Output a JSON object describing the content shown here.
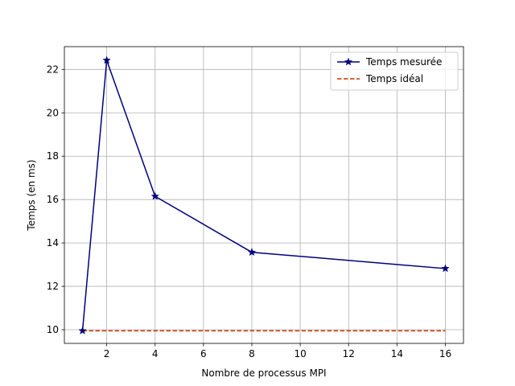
{
  "chart_data": {
    "type": "line",
    "title": "",
    "xlabel": "Nombre de processus MPI",
    "ylabel": "Temps (en ms)",
    "xlim": [
      0.25,
      16.75
    ],
    "ylim": [
      9.37,
      23.05
    ],
    "xticks": [
      2,
      4,
      6,
      8,
      10,
      12,
      14,
      16
    ],
    "yticks": [
      10,
      12,
      14,
      16,
      18,
      20,
      22
    ],
    "grid": true,
    "legend_position": "top-right",
    "series": [
      {
        "name": "Temps mesurée",
        "x": [
          1,
          2,
          4,
          8,
          16
        ],
        "y": [
          9.95,
          22.42,
          16.15,
          13.57,
          12.82
        ],
        "color": "#00007f",
        "line_style": "solid",
        "marker": "star"
      },
      {
        "name": "Temps idéal",
        "x": [
          1,
          2,
          4,
          8,
          16
        ],
        "y": [
          9.95,
          9.95,
          9.95,
          9.95,
          9.95
        ],
        "color": "#cc3300",
        "line_style": "dashed",
        "marker": "none"
      }
    ]
  }
}
